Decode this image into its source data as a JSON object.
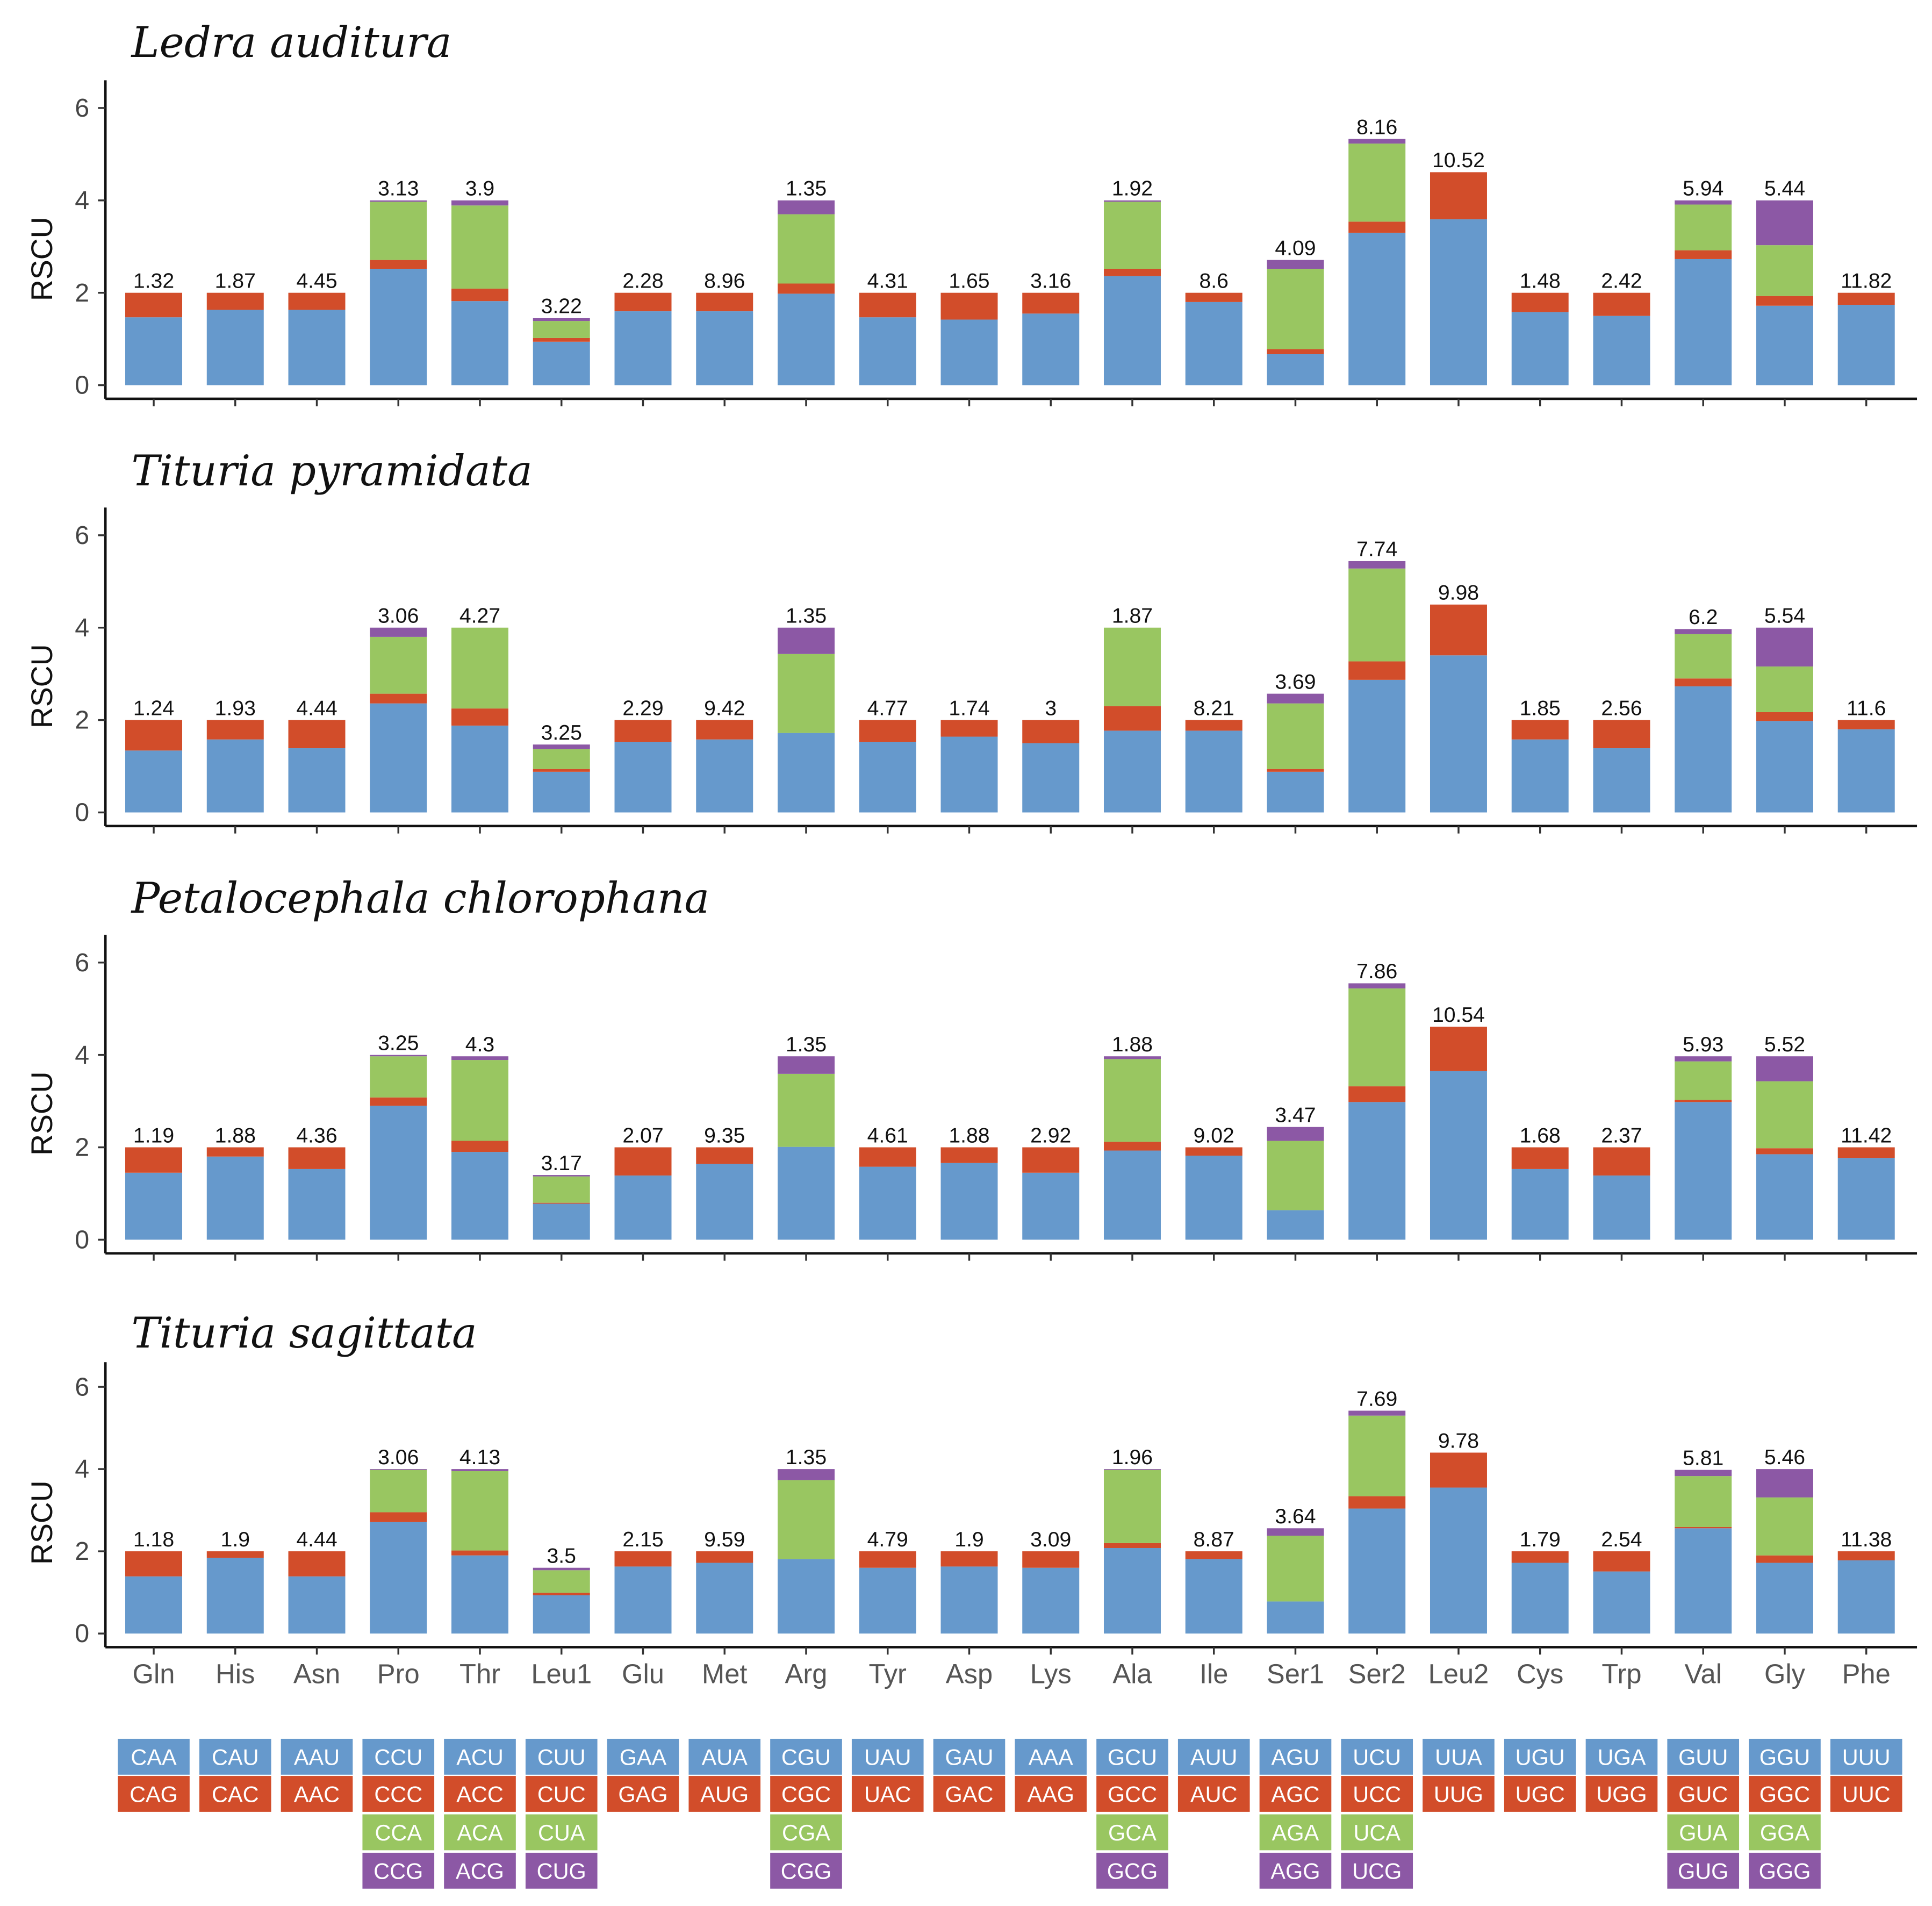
{
  "colors": {
    "blue": "#6699cc",
    "red": "#d24d2a",
    "green": "#99c661",
    "purple": "#8c58a5"
  },
  "categories": [
    "Gln",
    "His",
    "Asn",
    "Pro",
    "Thr",
    "Leu1",
    "Glu",
    "Met",
    "Arg",
    "Tyr",
    "Asp",
    "Lys",
    "Ala",
    "Ile",
    "Ser1",
    "Ser2",
    "Leu2",
    "Cys",
    "Trp",
    "Val",
    "Gly",
    "Phe"
  ],
  "codons": [
    [
      "CAA",
      "CAG"
    ],
    [
      "CAU",
      "CAC"
    ],
    [
      "AAU",
      "AAC"
    ],
    [
      "CCU",
      "CCC",
      "CCA",
      "CCG"
    ],
    [
      "ACU",
      "ACC",
      "ACA",
      "ACG"
    ],
    [
      "CUU",
      "CUC",
      "CUA",
      "CUG"
    ],
    [
      "GAA",
      "GAG"
    ],
    [
      "AUA",
      "AUG"
    ],
    [
      "CGU",
      "CGC",
      "CGA",
      "CGG"
    ],
    [
      "UAU",
      "UAC"
    ],
    [
      "GAU",
      "GAC"
    ],
    [
      "AAA",
      "AAG"
    ],
    [
      "GCU",
      "GCC",
      "GCA",
      "GCG"
    ],
    [
      "AUU",
      "AUC"
    ],
    [
      "AGU",
      "AGC",
      "AGA",
      "AGG"
    ],
    [
      "UCU",
      "UCC",
      "UCA",
      "UCG"
    ],
    [
      "UUA",
      "UUG"
    ],
    [
      "UGU",
      "UGC"
    ],
    [
      "UGA",
      "UGG"
    ],
    [
      "GUU",
      "GUC",
      "GUA",
      "GUG"
    ],
    [
      "GGU",
      "GGC",
      "GGA",
      "GGG"
    ],
    [
      "UUU",
      "UUC"
    ]
  ],
  "chart_data": [
    {
      "type": "bar",
      "stacked": true,
      "title": "Ledra auditura",
      "ylabel": "RSCU",
      "xlabel": "",
      "ylim": [
        0,
        6.5
      ],
      "yticks": [
        "0",
        "2",
        "4",
        "6"
      ],
      "bar_labels": [
        "1.32",
        "1.87",
        "4.45",
        "3.13",
        "3.9",
        "3.22",
        "2.28",
        "8.96",
        "1.35",
        "4.31",
        "1.65",
        "3.16",
        "1.92",
        "8.6",
        "4.09",
        "8.16",
        "10.52",
        "1.48",
        "2.42",
        "5.94",
        "5.44",
        "11.82"
      ],
      "series": [
        {
          "name": "codon 1",
          "color": "blue",
          "values": [
            1.47,
            1.63,
            1.63,
            2.52,
            1.82,
            0.94,
            1.6,
            1.6,
            1.98,
            1.47,
            1.42,
            1.55,
            2.36,
            1.8,
            0.67,
            3.3,
            3.59,
            1.58,
            1.5,
            2.73,
            1.72,
            1.74
          ]
        },
        {
          "name": "codon 2",
          "color": "red",
          "values": [
            0.53,
            0.37,
            0.37,
            0.19,
            0.27,
            0.08,
            0.4,
            0.4,
            0.22,
            0.53,
            0.58,
            0.45,
            0.16,
            0.2,
            0.11,
            0.24,
            1.02,
            0.42,
            0.5,
            0.19,
            0.21,
            0.26
          ]
        },
        {
          "name": "codon 3",
          "color": "green",
          "values": [
            0,
            0,
            0,
            1.26,
            1.8,
            0.37,
            0,
            0,
            1.5,
            0,
            0,
            0,
            1.45,
            0,
            1.74,
            1.69,
            0,
            0,
            0,
            0.99,
            1.1,
            0
          ]
        },
        {
          "name": "codon 4",
          "color": "purple",
          "values": [
            0,
            0,
            0,
            0.03,
            0.11,
            0.06,
            0,
            0,
            0.3,
            0,
            0,
            0,
            0.03,
            0,
            0.19,
            0.1,
            0,
            0,
            0,
            0.09,
            0.97,
            0
          ]
        }
      ]
    },
    {
      "type": "bar",
      "stacked": true,
      "title": "Tituria pyramidata",
      "ylabel": "RSCU",
      "xlabel": "",
      "ylim": [
        0,
        6.5
      ],
      "yticks": [
        "0",
        "2",
        "4",
        "6"
      ],
      "bar_labels": [
        "1.24",
        "1.93",
        "4.44",
        "3.06",
        "4.27",
        "3.25",
        "2.29",
        "9.42",
        "1.35",
        "4.77",
        "1.74",
        "3",
        "1.87",
        "8.21",
        "3.69",
        "7.74",
        "9.98",
        "1.85",
        "2.56",
        "6.2",
        "5.54",
        "11.6"
      ],
      "series": [
        {
          "name": "codon 1",
          "color": "blue",
          "values": [
            1.34,
            1.58,
            1.39,
            2.36,
            1.88,
            0.88,
            1.53,
            1.58,
            1.72,
            1.53,
            1.64,
            1.5,
            1.77,
            1.77,
            0.88,
            2.87,
            3.4,
            1.58,
            1.39,
            2.73,
            1.98,
            1.8
          ]
        },
        {
          "name": "codon 2",
          "color": "red",
          "values": [
            0.66,
            0.42,
            0.61,
            0.21,
            0.37,
            0.06,
            0.47,
            0.42,
            0,
            0.47,
            0.36,
            0.5,
            0.53,
            0.23,
            0.06,
            0.4,
            1.1,
            0.42,
            0.61,
            0.17,
            0.19,
            0.2
          ]
        },
        {
          "name": "codon 3",
          "color": "green",
          "values": [
            0,
            0,
            0,
            1.23,
            1.75,
            0.43,
            0,
            0,
            1.71,
            0,
            0,
            0,
            1.7,
            0,
            1.42,
            2.01,
            0,
            0,
            0,
            0.96,
            0.99,
            0
          ]
        },
        {
          "name": "codon 4",
          "color": "purple",
          "values": [
            0,
            0,
            0,
            0.2,
            0,
            0.1,
            0,
            0,
            0.57,
            0,
            0,
            0,
            0,
            0,
            0.21,
            0.16,
            0,
            0,
            0,
            0.11,
            0.84,
            0
          ]
        }
      ]
    },
    {
      "type": "bar",
      "stacked": true,
      "title": "Petalocephala chlorophana",
      "ylabel": "RSCU",
      "xlabel": "",
      "ylim": [
        0,
        6.5
      ],
      "yticks": [
        "0",
        "2",
        "4",
        "6"
      ],
      "bar_labels": [
        "1.19",
        "1.88",
        "4.36",
        "3.25",
        "4.3",
        "3.17",
        "2.07",
        "9.35",
        "1.35",
        "4.61",
        "1.88",
        "2.92",
        "1.88",
        "9.02",
        "3.47",
        "7.86",
        "10.54",
        "1.68",
        "2.37",
        "5.93",
        "5.52",
        "11.42"
      ],
      "series": [
        {
          "name": "codon 1",
          "color": "blue",
          "values": [
            1.45,
            1.8,
            1.53,
            2.9,
            1.9,
            0.78,
            1.39,
            1.64,
            2.01,
            1.58,
            1.66,
            1.45,
            1.93,
            1.82,
            0.64,
            2.98,
            3.65,
            1.53,
            1.39,
            2.98,
            1.85,
            1.77
          ]
        },
        {
          "name": "codon 2",
          "color": "red",
          "values": [
            0.55,
            0.2,
            0.47,
            0.18,
            0.24,
            0.02,
            0.61,
            0.36,
            0,
            0.42,
            0.34,
            0.55,
            0.19,
            0.18,
            0,
            0.34,
            0.96,
            0.47,
            0.61,
            0.05,
            0.13,
            0.23
          ]
        },
        {
          "name": "codon 3",
          "color": "green",
          "values": [
            0,
            0,
            0,
            0.89,
            1.75,
            0.57,
            0,
            0,
            1.58,
            0,
            0,
            0,
            1.79,
            0,
            1.5,
            2.12,
            0,
            0,
            0,
            0.83,
            1.45,
            0
          ]
        },
        {
          "name": "codon 4",
          "color": "purple",
          "values": [
            0,
            0,
            0,
            0.03,
            0.08,
            0.03,
            0,
            0,
            0.38,
            0,
            0,
            0,
            0.06,
            0,
            0.3,
            0.11,
            0,
            0,
            0,
            0.11,
            0.54,
            0
          ]
        }
      ]
    },
    {
      "type": "bar",
      "stacked": true,
      "title": "Tituria sagittata",
      "ylabel": "RSCU",
      "xlabel": "",
      "ylim": [
        0,
        6.5
      ],
      "yticks": [
        "0",
        "2",
        "4",
        "6"
      ],
      "bar_labels": [
        "1.18",
        "1.9",
        "4.44",
        "3.06",
        "4.13",
        "3.5",
        "2.15",
        "9.59",
        "1.35",
        "4.79",
        "1.9",
        "3.09",
        "1.96",
        "8.87",
        "3.64",
        "7.69",
        "9.78",
        "1.79",
        "2.54",
        "5.81",
        "5.46",
        "11.38"
      ],
      "series": [
        {
          "name": "codon 1",
          "color": "blue",
          "values": [
            1.39,
            1.84,
            1.39,
            2.71,
            1.9,
            0.93,
            1.63,
            1.72,
            1.81,
            1.6,
            1.63,
            1.6,
            2.08,
            1.81,
            0.78,
            3.04,
            3.55,
            1.72,
            1.51,
            2.56,
            1.72,
            1.78
          ]
        },
        {
          "name": "codon 2",
          "color": "red",
          "values": [
            0.61,
            0.16,
            0.61,
            0.24,
            0.12,
            0.06,
            0.37,
            0.28,
            0,
            0.4,
            0.37,
            0.4,
            0.12,
            0.19,
            0,
            0.3,
            0.85,
            0.28,
            0.49,
            0.03,
            0.18,
            0.22
          ]
        },
        {
          "name": "codon 3",
          "color": "green",
          "values": [
            0,
            0,
            0,
            1.03,
            1.93,
            0.55,
            0,
            0,
            1.92,
            0,
            0,
            0,
            1.78,
            0,
            1.6,
            1.96,
            0,
            0,
            0,
            1.24,
            1.41,
            0
          ]
        },
        {
          "name": "codon 4",
          "color": "purple",
          "values": [
            0,
            0,
            0,
            0.02,
            0.05,
            0.06,
            0,
            0,
            0.27,
            0,
            0,
            0,
            0.02,
            0,
            0.18,
            0.12,
            0,
            0,
            0,
            0.15,
            0.69,
            0
          ]
        }
      ]
    }
  ]
}
